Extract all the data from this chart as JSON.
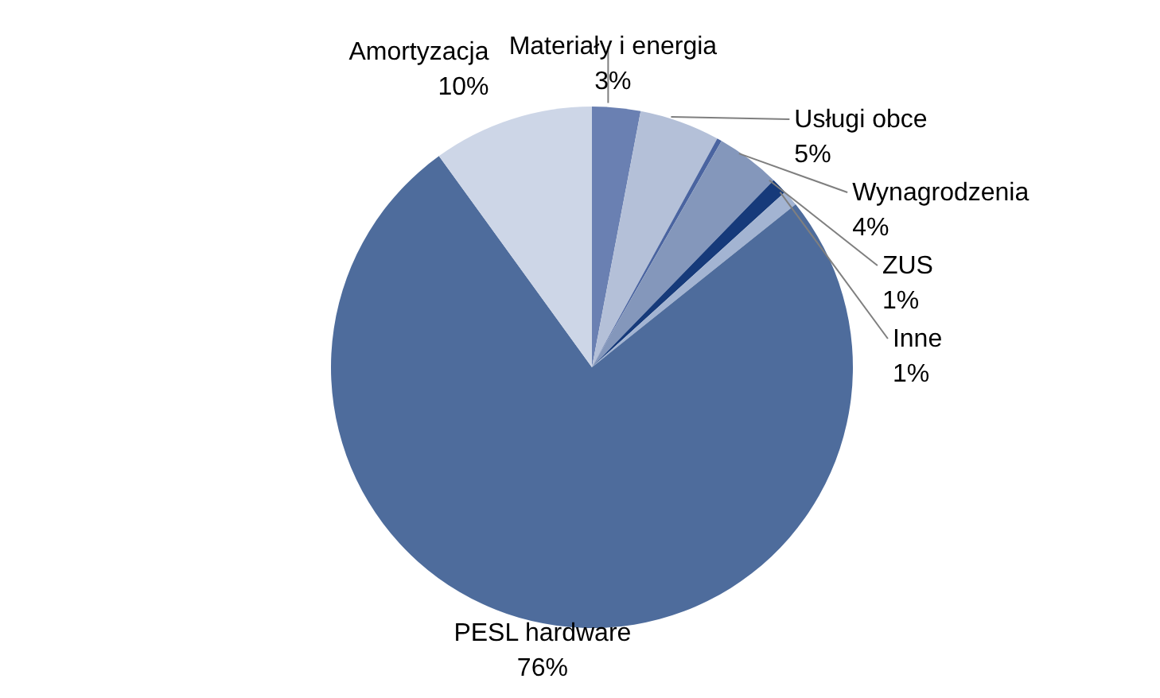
{
  "chart_data": {
    "type": "pie",
    "categories": [
      "Materiały i energia",
      "Usługi obce",
      null,
      "Wynagrodzenia",
      "ZUS",
      "Inne",
      "PESL hardware",
      "Amortyzacja"
    ],
    "values": [
      3,
      5,
      0.3,
      4,
      1,
      1,
      76,
      10
    ],
    "value_labels": [
      "3%",
      "5%",
      null,
      "4%",
      "1%",
      "1%",
      "76%",
      "10%"
    ],
    "colors": [
      "#6a80b2",
      "#b4c0d8",
      "#4a64a0",
      "#8497bb",
      "#163a7a",
      "#a3b4d2",
      "#4e6c9c",
      "#cdd6e7"
    ],
    "legend": false
  }
}
